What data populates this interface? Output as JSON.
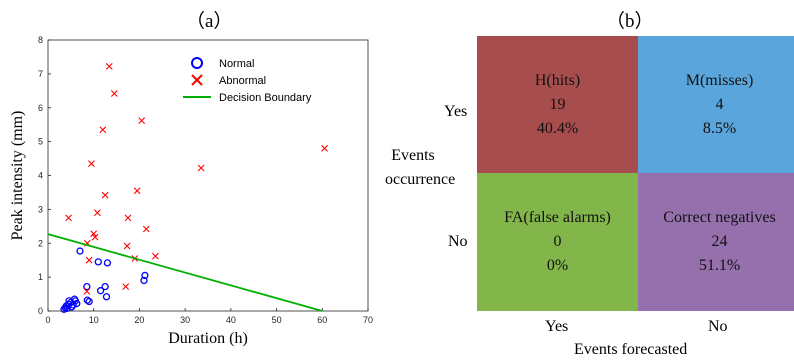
{
  "panels": {
    "a_label": "（a）",
    "b_label": "（b）"
  },
  "chart_data": [
    {
      "type": "scatter",
      "xlabel": "Duration (h)",
      "ylabel": "Peak intensity (mm)",
      "xlim": [
        0,
        70
      ],
      "ylim": [
        0,
        8
      ],
      "xticks": [
        0,
        10,
        20,
        30,
        40,
        50,
        60,
        70
      ],
      "yticks": [
        0,
        1,
        2,
        3,
        4,
        5,
        6,
        7,
        8
      ],
      "legend_position": "top-right",
      "series": [
        {
          "name": "Normal",
          "marker": "circle",
          "color": "#0000ff",
          "points": [
            [
              3.5,
              0.05
            ],
            [
              3.8,
              0.1
            ],
            [
              4,
              0.15
            ],
            [
              4.2,
              0.08
            ],
            [
              4.5,
              0.2
            ],
            [
              4.6,
              0.3
            ],
            [
              5,
              0.25
            ],
            [
              5.2,
              0.12
            ],
            [
              5.5,
              0.18
            ],
            [
              5.8,
              0.35
            ],
            [
              6,
              0.3
            ],
            [
              6.3,
              0.22
            ],
            [
              7,
              1.77
            ],
            [
              8.5,
              0.72
            ],
            [
              8.6,
              0.32
            ],
            [
              9,
              0.28
            ],
            [
              11,
              1.45
            ],
            [
              11.5,
              0.6
            ],
            [
              12.5,
              0.72
            ],
            [
              12.8,
              0.42
            ],
            [
              13,
              1.42
            ],
            [
              21,
              0.9
            ],
            [
              21.2,
              1.05
            ]
          ]
        },
        {
          "name": "Abnormal",
          "marker": "x",
          "color": "#ff0000",
          "points": [
            [
              4.5,
              2.75
            ],
            [
              8.5,
              0.58
            ],
            [
              8.6,
              2.0
            ],
            [
              9,
              1.5
            ],
            [
              9.5,
              4.35
            ],
            [
              10,
              2.28
            ],
            [
              10.3,
              2.18
            ],
            [
              10.8,
              2.9
            ],
            [
              12,
              5.35
            ],
            [
              12.5,
              3.42
            ],
            [
              13.4,
              7.22
            ],
            [
              14.5,
              6.42
            ],
            [
              17,
              0.72
            ],
            [
              17.3,
              1.92
            ],
            [
              17.5,
              2.75
            ],
            [
              19,
              1.55
            ],
            [
              19.5,
              3.55
            ],
            [
              20.5,
              5.62
            ],
            [
              21.5,
              2.42
            ],
            [
              23.5,
              1.62
            ],
            [
              33.5,
              4.22
            ],
            [
              60.5,
              4.8
            ]
          ]
        },
        {
          "name": "Decision Boundary",
          "marker": "line",
          "color": "#00b000",
          "points": [
            [
              0,
              2.27
            ],
            [
              60,
              0
            ]
          ]
        }
      ]
    },
    {
      "type": "table",
      "title": "",
      "row_axis_label": "Events occurrence",
      "col_axis_label": "Events forecasted",
      "row_labels": [
        "Yes",
        "No"
      ],
      "col_labels": [
        "Yes",
        "No"
      ],
      "cells": [
        [
          {
            "name": "H(hits)",
            "count": "19",
            "percent": "40.4%",
            "color": "#a84d4d"
          },
          {
            "name": "M(misses)",
            "count": "4",
            "percent": "8.5%",
            "color": "#5aa6dc"
          }
        ],
        [
          {
            "name": "FA(false alarms)",
            "count": "0",
            "percent": "0%",
            "color": "#82b64a"
          },
          {
            "name": "Correct negatives",
            "count": "24",
            "percent": "51.1%",
            "color": "#9670ad"
          }
        ]
      ]
    }
  ]
}
